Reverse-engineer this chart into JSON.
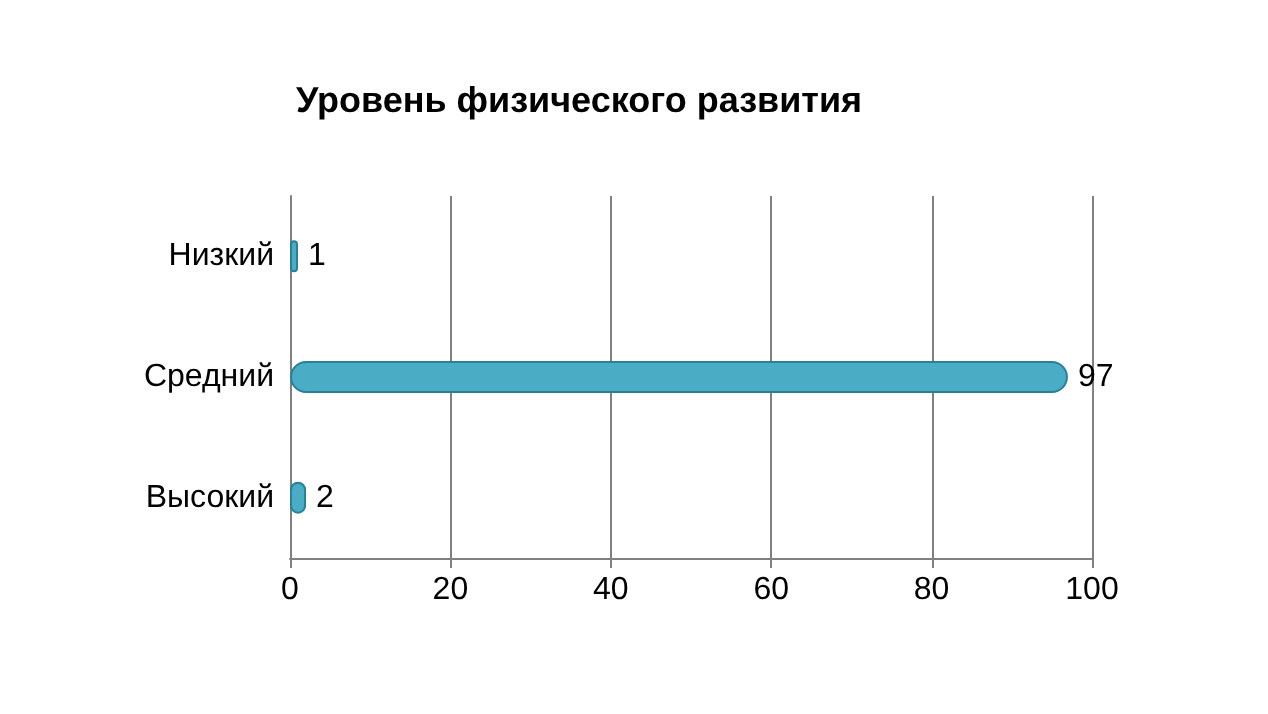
{
  "chart_data": {
    "type": "bar",
    "orientation": "horizontal",
    "title": "Уровень физического развития",
    "categories": [
      "Низкий",
      "Средний",
      "Высокий"
    ],
    "values": [
      1,
      97,
      2
    ],
    "color": "#4bacc6",
    "xlim": [
      0,
      100
    ],
    "xticks": [
      0,
      20,
      40,
      60,
      80,
      100
    ],
    "grid": "x",
    "data_labels": true
  }
}
